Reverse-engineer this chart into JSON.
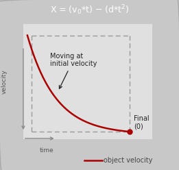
{
  "title_text": "X = (v$_0$*t) – (d*t$^2$)",
  "title_bg": "#636363",
  "title_color": "#ffffff",
  "bg_color": "#c8c8c8",
  "plot_bg": "#e0e0e0",
  "curve_color": "#aa0000",
  "dashed_color": "#999999",
  "label_moving": "Moving at\ninitial velocity",
  "label_final": "Final\n(0)",
  "label_velocity": "velocity",
  "label_time": "time",
  "legend_label": "object velocity",
  "title_fontsize": 9,
  "annot_fontsize": 7,
  "axis_label_fontsize": 6.5,
  "legend_fontsize": 7
}
